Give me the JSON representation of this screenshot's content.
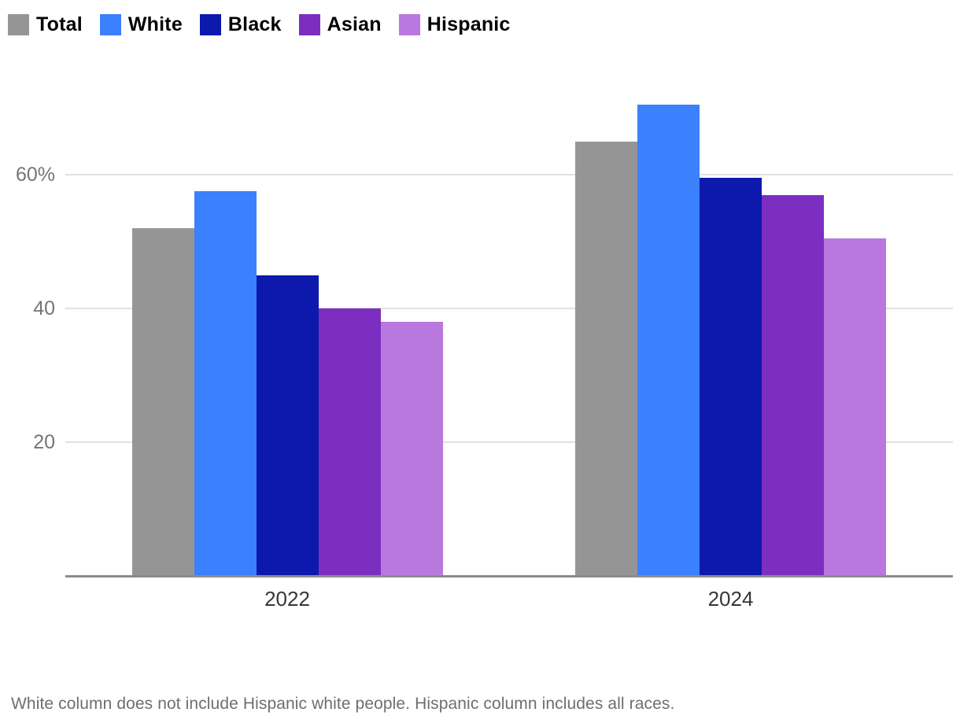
{
  "chart_data": {
    "type": "bar",
    "title": "",
    "categories": [
      "2022",
      "2024"
    ],
    "series": [
      {
        "name": "Total",
        "color": "#959595",
        "values": [
          52,
          65
        ]
      },
      {
        "name": "White",
        "color": "#3b80fc",
        "values": [
          57.5,
          70.5
        ]
      },
      {
        "name": "Black",
        "color": "#0c19ac",
        "values": [
          45,
          59.5
        ]
      },
      {
        "name": "Asian",
        "color": "#7c2ec1",
        "values": [
          40,
          57
        ]
      },
      {
        "name": "Hispanic",
        "color": "#b978de",
        "values": [
          38,
          50.5
        ]
      }
    ],
    "yticks": [
      {
        "value": 60,
        "label": "60%"
      },
      {
        "value": 40,
        "label": "40"
      },
      {
        "value": 20,
        "label": "20"
      }
    ],
    "ylim": [
      0,
      75
    ],
    "grid": true,
    "legend_position": "top-left",
    "unit": "percent",
    "footnote": "White column does not include Hispanic white people. Hispanic column includes all races.",
    "colors": {
      "axis_line": "#8c8c8c",
      "gridline": "#e3e1db",
      "y_tick_text": "#757575",
      "x_label_text": "#373737",
      "footnote_text": "#6e6e6e"
    }
  }
}
